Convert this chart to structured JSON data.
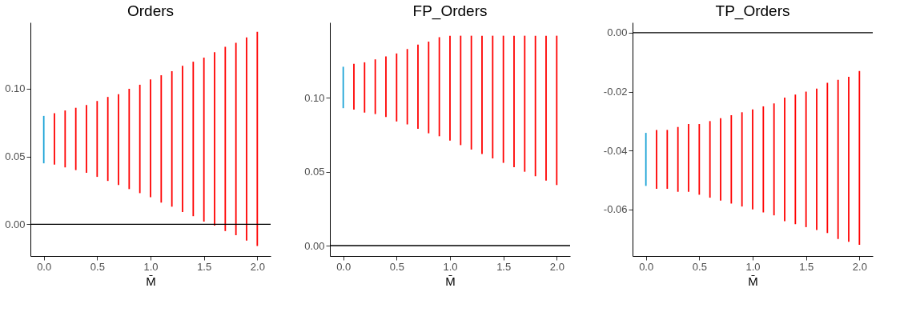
{
  "chart_data": [
    {
      "type": "bar",
      "title": "Orders",
      "xlabel": "M̄",
      "grid": false,
      "x": [
        0,
        0.1,
        0.2,
        0.3,
        0.4,
        0.5,
        0.6,
        0.7,
        0.8,
        0.9,
        1.0,
        1.1,
        1.2,
        1.3,
        1.4,
        1.5,
        1.6,
        1.7,
        1.8,
        1.9,
        2.0
      ],
      "xlim": [
        -0.125,
        2.125
      ],
      "xticks": [
        {
          "value": 0,
          "label": "0.0"
        },
        {
          "value": 0.5,
          "label": "0.5"
        },
        {
          "value": 1,
          "label": "1.0"
        },
        {
          "value": 1.5,
          "label": "1.5"
        },
        {
          "value": 2,
          "label": "2.0"
        }
      ],
      "ylim": [
        -0.0234,
        0.149
      ],
      "yticks": [
        {
          "value": 0,
          "label": "0.00"
        },
        {
          "value": 0.05,
          "label": "0.05"
        },
        {
          "value": 0.1,
          "label": "0.10"
        }
      ],
      "base": [
        0.045,
        0.044,
        0.042,
        0.04,
        0.038,
        0.035,
        0.032,
        0.029,
        0.026,
        0.023,
        0.02,
        0.016,
        0.013,
        0.009,
        0.006,
        0.002,
        -0.001,
        -0.005,
        -0.008,
        -0.012,
        -0.016
      ],
      "values": [
        0.035,
        0.038,
        0.042,
        0.046,
        0.05,
        0.056,
        0.062,
        0.067,
        0.074,
        0.08,
        0.087,
        0.094,
        0.1,
        0.108,
        0.114,
        0.121,
        0.128,
        0.136,
        0.142,
        0.15,
        0.158
      ],
      "colors": [
        "#1ba3d6",
        "#ff0000",
        "#ff0000",
        "#ff0000",
        "#ff0000",
        "#ff0000",
        "#ff0000",
        "#ff0000",
        "#ff0000",
        "#ff0000",
        "#ff0000",
        "#ff0000",
        "#ff0000",
        "#ff0000",
        "#ff0000",
        "#ff0000",
        "#ff0000",
        "#ff0000",
        "#ff0000",
        "#ff0000",
        "#ff0000"
      ],
      "ref_lines": [
        {
          "axis": "y",
          "value": 0,
          "color": "#000000"
        }
      ]
    },
    {
      "type": "bar",
      "title": "FP_Orders",
      "xlabel": "M̄",
      "grid": false,
      "x": [
        0,
        0.1,
        0.2,
        0.3,
        0.4,
        0.5,
        0.6,
        0.7,
        0.8,
        0.9,
        1.0,
        1.1,
        1.2,
        1.3,
        1.4,
        1.5,
        1.6,
        1.7,
        1.8,
        1.9,
        2.0
      ],
      "xlim": [
        -0.125,
        2.125
      ],
      "xticks": [
        {
          "value": 0,
          "label": "0.0"
        },
        {
          "value": 0.5,
          "label": "0.5"
        },
        {
          "value": 1,
          "label": "1.0"
        },
        {
          "value": 1.5,
          "label": "1.5"
        },
        {
          "value": 2,
          "label": "2.0"
        }
      ],
      "ylim": [
        -0.007,
        0.151
      ],
      "yticks": [
        {
          "value": 0,
          "label": "0.00"
        },
        {
          "value": 0.05,
          "label": "0.05"
        },
        {
          "value": 0.1,
          "label": "0.10"
        }
      ],
      "base": [
        0.093,
        0.092,
        0.09,
        0.089,
        0.087,
        0.084,
        0.082,
        0.079,
        0.076,
        0.074,
        0.071,
        0.068,
        0.065,
        0.062,
        0.059,
        0.056,
        0.053,
        0.05,
        0.047,
        0.044,
        0.041
      ],
      "values": [
        0.028,
        0.031,
        0.034,
        0.037,
        0.041,
        0.046,
        0.051,
        0.057,
        0.062,
        0.067,
        0.071,
        0.074,
        0.077,
        0.08,
        0.083,
        0.086,
        0.089,
        0.092,
        0.095,
        0.098,
        0.101
      ],
      "colors": [
        "#1ba3d6",
        "#ff0000",
        "#ff0000",
        "#ff0000",
        "#ff0000",
        "#ff0000",
        "#ff0000",
        "#ff0000",
        "#ff0000",
        "#ff0000",
        "#ff0000",
        "#ff0000",
        "#ff0000",
        "#ff0000",
        "#ff0000",
        "#ff0000",
        "#ff0000",
        "#ff0000",
        "#ff0000",
        "#ff0000",
        "#ff0000"
      ],
      "ref_lines": [
        {
          "axis": "y",
          "value": 0,
          "color": "#000000"
        }
      ]
    },
    {
      "type": "bar",
      "title": "TP_Orders",
      "xlabel": "M̄",
      "grid": false,
      "x": [
        0,
        0.1,
        0.2,
        0.3,
        0.4,
        0.5,
        0.6,
        0.7,
        0.8,
        0.9,
        1.0,
        1.1,
        1.2,
        1.3,
        1.4,
        1.5,
        1.6,
        1.7,
        1.8,
        1.9,
        2.0
      ],
      "xlim": [
        -0.125,
        2.125
      ],
      "xticks": [
        {
          "value": 0,
          "label": "0.0"
        },
        {
          "value": 0.5,
          "label": "0.5"
        },
        {
          "value": 1,
          "label": "1.0"
        },
        {
          "value": 1.5,
          "label": "1.5"
        },
        {
          "value": 2,
          "label": "2.0"
        }
      ],
      "ylim": [
        -0.0758,
        0.0035
      ],
      "yticks": [
        {
          "value": -0.06,
          "label": "-0.06"
        },
        {
          "value": -0.04,
          "label": "-0.04"
        },
        {
          "value": -0.02,
          "label": "-0.02"
        },
        {
          "value": 0,
          "label": "0.00"
        }
      ],
      "base": [
        -0.052,
        -0.053,
        -0.053,
        -0.054,
        -0.054,
        -0.055,
        -0.056,
        -0.057,
        -0.058,
        -0.059,
        -0.06,
        -0.061,
        -0.062,
        -0.064,
        -0.065,
        -0.066,
        -0.067,
        -0.068,
        -0.07,
        -0.071,
        -0.072
      ],
      "values": [
        0.018,
        0.02,
        0.02,
        0.022,
        0.023,
        0.024,
        0.026,
        0.028,
        0.03,
        0.032,
        0.034,
        0.036,
        0.038,
        0.042,
        0.044,
        0.046,
        0.048,
        0.051,
        0.054,
        0.056,
        0.059
      ],
      "colors": [
        "#1ba3d6",
        "#ff0000",
        "#ff0000",
        "#ff0000",
        "#ff0000",
        "#ff0000",
        "#ff0000",
        "#ff0000",
        "#ff0000",
        "#ff0000",
        "#ff0000",
        "#ff0000",
        "#ff0000",
        "#ff0000",
        "#ff0000",
        "#ff0000",
        "#ff0000",
        "#ff0000",
        "#ff0000",
        "#ff0000",
        "#ff0000"
      ],
      "ref_lines": [
        {
          "axis": "y",
          "value": 0,
          "color": "#000000"
        }
      ]
    }
  ]
}
